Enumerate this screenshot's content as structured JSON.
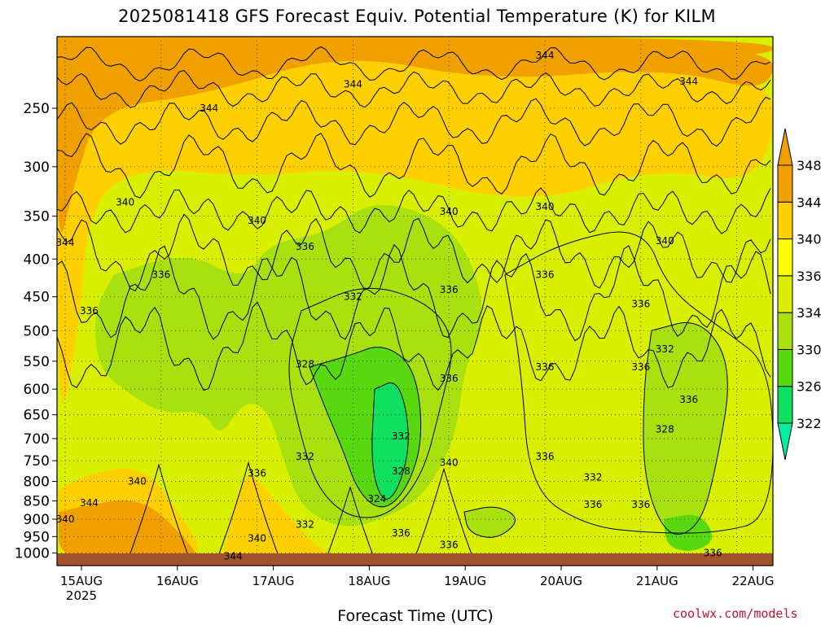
{
  "chart_data": {
    "type": "heatmap",
    "title": "2025081418 GFS Forecast Equiv. Potential Temperature (K) for KILM",
    "xlabel": "Forecast Time (UTC)",
    "ylabel": "",
    "credit": "coolwx.com/models",
    "x_ticks": [
      "15AUG",
      "16AUG",
      "17AUG",
      "18AUG",
      "19AUG",
      "20AUG",
      "21AUG",
      "22AUG"
    ],
    "x_year_label": "2025",
    "y_ticks": [
      250,
      300,
      350,
      400,
      450,
      500,
      550,
      600,
      650,
      700,
      750,
      800,
      850,
      900,
      950,
      1000
    ],
    "y_axis": "pressure (hPa), inverted, log scale",
    "colorbar": {
      "levels": [
        322,
        326,
        330,
        334,
        336,
        340,
        344,
        348
      ],
      "colors": [
        "#00f0a0",
        "#10e060",
        "#58d810",
        "#a8e010",
        "#d8f000",
        "#ffff00",
        "#ffd000",
        "#f0a000"
      ],
      "extend": "both"
    },
    "contour_labels": [
      {
        "value": 344,
        "time": "16AUG 12Z",
        "p": 250
      },
      {
        "value": 344,
        "time": "18AUG 00Z",
        "p": 232
      },
      {
        "value": 344,
        "time": "20AUG 00Z",
        "p": 212
      },
      {
        "value": 344,
        "time": "21AUG 12Z",
        "p": 230
      },
      {
        "value": 344,
        "time": "15AUG 00Z",
        "p": 380
      },
      {
        "value": 340,
        "time": "15AUG 15Z",
        "p": 335
      },
      {
        "value": 340,
        "time": "17AUG 00Z",
        "p": 355
      },
      {
        "value": 340,
        "time": "19AUG 00Z",
        "p": 345
      },
      {
        "value": 340,
        "time": "20AUG 00Z",
        "p": 340
      },
      {
        "value": 340,
        "time": "21AUG 06Z",
        "p": 378
      },
      {
        "value": 336,
        "time": "17AUG 12Z",
        "p": 385
      },
      {
        "value": 336,
        "time": "16AUG 00Z",
        "p": 420
      },
      {
        "value": 336,
        "time": "15AUG 06Z",
        "p": 470
      },
      {
        "value": 336,
        "time": "19AUG 00Z",
        "p": 440
      },
      {
        "value": 336,
        "time": "20AUG 00Z",
        "p": 420
      },
      {
        "value": 336,
        "time": "21AUG 00Z",
        "p": 460
      },
      {
        "value": 336,
        "time": "19AUG 00Z",
        "p": 580
      },
      {
        "value": 336,
        "time": "20AUG 00Z",
        "p": 560
      },
      {
        "value": 336,
        "time": "21AUG 00Z",
        "p": 560
      },
      {
        "value": 336,
        "time": "21AUG 12Z",
        "p": 620
      },
      {
        "value": 336,
        "time": "17AUG 00Z",
        "p": 780
      },
      {
        "value": 336,
        "time": "20AUG 00Z",
        "p": 740
      },
      {
        "value": 336,
        "time": "20AUG 12Z",
        "p": 860
      },
      {
        "value": 336,
        "time": "21AUG 00Z",
        "p": 860
      },
      {
        "value": 336,
        "time": "18AUG 12Z",
        "p": 940
      },
      {
        "value": 336,
        "time": "19AUG 00Z",
        "p": 975
      },
      {
        "value": 336,
        "time": "21AUG 18Z",
        "p": 1000
      },
      {
        "value": 332,
        "time": "18AUG 00Z",
        "p": 450
      },
      {
        "value": 332,
        "time": "17AUG 12Z",
        "p": 740
      },
      {
        "value": 332,
        "time": "18AUG 12Z",
        "p": 695
      },
      {
        "value": 332,
        "time": "17AUG 12Z",
        "p": 915
      },
      {
        "value": 332,
        "time": "20AUG 12Z",
        "p": 790
      },
      {
        "value": 332,
        "time": "21AUG 06Z",
        "p": 530
      },
      {
        "value": 328,
        "time": "17AUG 12Z",
        "p": 555
      },
      {
        "value": 328,
        "time": "18AUG 12Z",
        "p": 775
      },
      {
        "value": 328,
        "time": "21AUG 06Z",
        "p": 680
      },
      {
        "value": 324,
        "time": "18AUG 06Z",
        "p": 845
      },
      {
        "value": 340,
        "time": "15AUG 18Z",
        "p": 800
      },
      {
        "value": 340,
        "time": "19AUG 00Z",
        "p": 755
      },
      {
        "value": 340,
        "time": "17AUG 00Z",
        "p": 955
      },
      {
        "value": 340,
        "time": "15AUG 00Z",
        "p": 900
      },
      {
        "value": 344,
        "time": "15AUG 06Z",
        "p": 855
      },
      {
        "value": 344,
        "time": "16AUG 18Z",
        "p": 1010
      }
    ]
  }
}
